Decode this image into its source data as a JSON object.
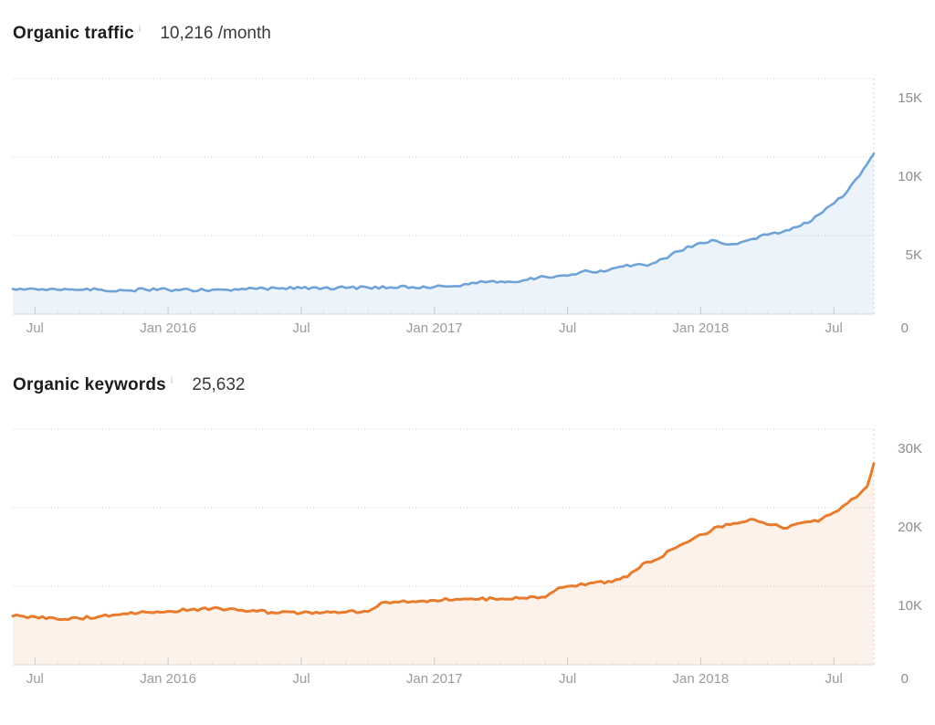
{
  "page": {
    "background": "#ffffff"
  },
  "chart_data": [
    {
      "id": "organic-traffic",
      "type": "area",
      "title": "Organic traffic",
      "metric_value": "10,216 /month",
      "info_icon": "i",
      "legend": "none",
      "grid": "horizontal-dotted",
      "colors": {
        "line": "#6fa3d8",
        "fill": "rgba(111,163,216,0.13)"
      },
      "x_axis": {
        "note": "month index, 0 = Jun 2015",
        "range": [
          0,
          38.8
        ],
        "ticks": [
          {
            "pos": 1,
            "label": "Jul"
          },
          {
            "pos": 7,
            "label": "Jan 2016"
          },
          {
            "pos": 13,
            "label": "Jul"
          },
          {
            "pos": 19,
            "label": "Jan 2017"
          },
          {
            "pos": 25,
            "label": "Jul"
          },
          {
            "pos": 31,
            "label": "Jan 2018"
          },
          {
            "pos": 37,
            "label": "Jul"
          }
        ]
      },
      "y_axis": {
        "range": [
          0,
          15000
        ],
        "side": "right",
        "ticks": [
          {
            "v": 0,
            "label": "0"
          },
          {
            "v": 5000,
            "label": "5K"
          },
          {
            "v": 10000,
            "label": "10K"
          },
          {
            "v": 15000,
            "label": "15K"
          }
        ]
      },
      "series": [
        {
          "name": "Organic traffic",
          "points": [
            [
              0,
              1600
            ],
            [
              1,
              1600
            ],
            [
              2,
              1550
            ],
            [
              3,
              1540
            ],
            [
              4,
              1550
            ],
            [
              5,
              1520
            ],
            [
              6,
              1560
            ],
            [
              7,
              1550
            ],
            [
              8,
              1530
            ],
            [
              9,
              1560
            ],
            [
              10,
              1590
            ],
            [
              11,
              1610
            ],
            [
              12,
              1630
            ],
            [
              13,
              1650
            ],
            [
              14,
              1660
            ],
            [
              15,
              1670
            ],
            [
              16,
              1690
            ],
            [
              17,
              1710
            ],
            [
              18,
              1720
            ],
            [
              19,
              1740
            ],
            [
              20,
              1780
            ],
            [
              20.7,
              2000
            ],
            [
              21.3,
              2030
            ],
            [
              22,
              2080
            ],
            [
              23,
              2150
            ],
            [
              24,
              2380
            ],
            [
              25,
              2450
            ],
            [
              25.8,
              2780
            ],
            [
              26.3,
              2650
            ],
            [
              27,
              2900
            ],
            [
              28,
              3130
            ],
            [
              28.6,
              3080
            ],
            [
              29,
              3300
            ],
            [
              30,
              4000
            ],
            [
              30.8,
              4450
            ],
            [
              31.5,
              4720
            ],
            [
              32.3,
              4430
            ],
            [
              33,
              4650
            ],
            [
              34,
              5050
            ],
            [
              35,
              5350
            ],
            [
              36,
              5950
            ],
            [
              37,
              7050
            ],
            [
              37.6,
              7800
            ],
            [
              38,
              8600
            ],
            [
              38.5,
              9550
            ],
            [
              38.8,
              10216
            ]
          ]
        }
      ]
    },
    {
      "id": "organic-keywords",
      "type": "area",
      "title": "Organic keywords",
      "metric_value": "25,632",
      "info_icon": "i",
      "legend": "none",
      "grid": "horizontal-dotted",
      "colors": {
        "line": "#e87c2e",
        "fill": "rgba(232,124,46,0.10)"
      },
      "x_axis": {
        "note": "month index, 0 = Jun 2015",
        "range": [
          0,
          38.8
        ],
        "ticks": [
          {
            "pos": 1,
            "label": "Jul"
          },
          {
            "pos": 7,
            "label": "Jan 2016"
          },
          {
            "pos": 13,
            "label": "Jul"
          },
          {
            "pos": 19,
            "label": "Jan 2017"
          },
          {
            "pos": 25,
            "label": "Jul"
          },
          {
            "pos": 31,
            "label": "Jan 2018"
          },
          {
            "pos": 37,
            "label": "Jul"
          }
        ]
      },
      "y_axis": {
        "range": [
          0,
          30000
        ],
        "side": "right",
        "ticks": [
          {
            "v": 0,
            "label": "0"
          },
          {
            "v": 10000,
            "label": "10K"
          },
          {
            "v": 20000,
            "label": "20K"
          },
          {
            "v": 30000,
            "label": "30K"
          }
        ]
      },
      "series": [
        {
          "name": "Organic keywords",
          "points": [
            [
              0,
              6200
            ],
            [
              1,
              6100
            ],
            [
              2,
              5800
            ],
            [
              3,
              5900
            ],
            [
              4,
              6200
            ],
            [
              5,
              6500
            ],
            [
              6,
              6700
            ],
            [
              7,
              6800
            ],
            [
              8,
              7000
            ],
            [
              9,
              7200
            ],
            [
              10,
              7100
            ],
            [
              11,
              6800
            ],
            [
              12,
              6600
            ],
            [
              13,
              6600
            ],
            [
              14,
              6650
            ],
            [
              15,
              6700
            ],
            [
              16,
              6780
            ],
            [
              16.6,
              7900
            ],
            [
              17.2,
              8000
            ],
            [
              18,
              8050
            ],
            [
              19,
              8200
            ],
            [
              20,
              8350
            ],
            [
              21,
              8350
            ],
            [
              22,
              8400
            ],
            [
              23,
              8500
            ],
            [
              24,
              8600
            ],
            [
              24.6,
              9800
            ],
            [
              25.2,
              10050
            ],
            [
              26,
              10400
            ],
            [
              27,
              10550
            ],
            [
              27.7,
              11200
            ],
            [
              28.4,
              12900
            ],
            [
              29.1,
              13500
            ],
            [
              29.7,
              14700
            ],
            [
              30.4,
              15600
            ],
            [
              31.1,
              16600
            ],
            [
              31.8,
              17600
            ],
            [
              32.5,
              18000
            ],
            [
              33.4,
              18500
            ],
            [
              34.2,
              17800
            ],
            [
              34.9,
              17400
            ],
            [
              35.6,
              18100
            ],
            [
              36.3,
              18250
            ],
            [
              37,
              19400
            ],
            [
              37.4,
              20200
            ],
            [
              38,
              21300
            ],
            [
              38.5,
              22700
            ],
            [
              38.8,
              25632
            ]
          ]
        }
      ]
    }
  ]
}
